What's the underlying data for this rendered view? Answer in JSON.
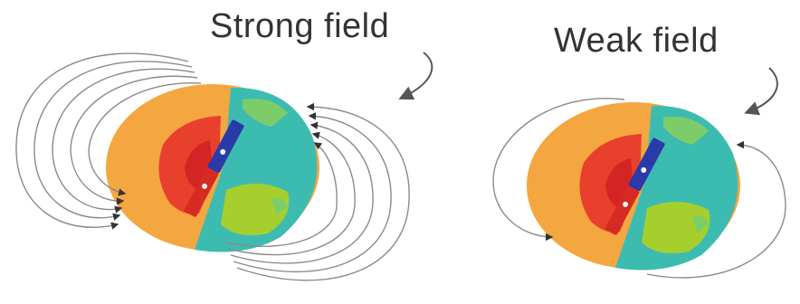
{
  "labels": {
    "strong": "Strong field",
    "weak": "Weak field"
  },
  "colors": {
    "mantle": "#f4a640",
    "surface": "#3cbcb0",
    "continent": "#a6cf2e",
    "land_patch": "#7ccd6a",
    "core_outer": "#e8402c",
    "core_inner": "#d42424",
    "magnet_north": "#2a3aa8",
    "magnet_south": "#d62a22",
    "field_line": "#8a8a8a"
  },
  "diagram": {
    "panels": [
      {
        "id": "strong",
        "field_line_count": 5
      },
      {
        "id": "weak",
        "field_line_count": 1
      }
    ]
  }
}
